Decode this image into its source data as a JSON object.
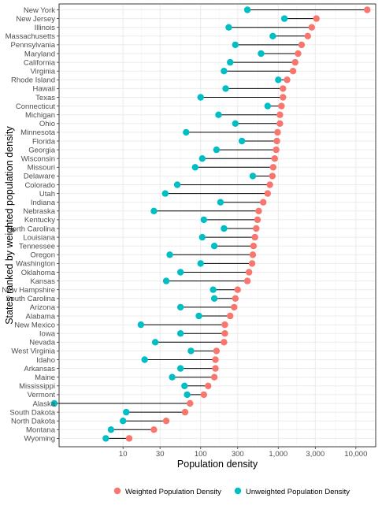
{
  "chart_data": {
    "type": "dumbbell",
    "xlabel": "Population density",
    "ylabel": "States ranked by weighted population density",
    "x_scale": "log10",
    "xlim": [
      1.5,
      18000
    ],
    "x_ticks": [
      {
        "value": 10,
        "label": "10"
      },
      {
        "value": 30,
        "label": "30"
      },
      {
        "value": 100,
        "label": "100"
      },
      {
        "value": 300,
        "label": "300"
      },
      {
        "value": 1000,
        "label": "1,000"
      },
      {
        "value": 3000,
        "label": "3,000"
      },
      {
        "value": 10000,
        "label": "10,000"
      }
    ],
    "grid": true,
    "legend_position": "bottom",
    "series": [
      {
        "name": "Weighted Population Density",
        "color": "#F8766D",
        "key": "weighted"
      },
      {
        "name": "Unweighted Population Density",
        "color": "#00BFC4",
        "key": "unweighted"
      }
    ],
    "states": [
      {
        "name": "New York",
        "weighted": 14000,
        "unweighted": 400
      },
      {
        "name": "New Jersey",
        "weighted": 3100,
        "unweighted": 1200
      },
      {
        "name": "Illinois",
        "weighted": 2700,
        "unweighted": 230
      },
      {
        "name": "Massachusetts",
        "weighted": 2400,
        "unweighted": 850
      },
      {
        "name": "Pennsylvania",
        "weighted": 2000,
        "unweighted": 280
      },
      {
        "name": "Maryland",
        "weighted": 1800,
        "unweighted": 600
      },
      {
        "name": "California",
        "weighted": 1650,
        "unweighted": 240
      },
      {
        "name": "Virginia",
        "weighted": 1550,
        "unweighted": 200
      },
      {
        "name": "Rhode Island",
        "weighted": 1300,
        "unweighted": 1000
      },
      {
        "name": "Hawaii",
        "weighted": 1150,
        "unweighted": 210
      },
      {
        "name": "Texas",
        "weighted": 1150,
        "unweighted": 100
      },
      {
        "name": "Connecticut",
        "weighted": 1100,
        "unweighted": 730
      },
      {
        "name": "Michigan",
        "weighted": 1050,
        "unweighted": 170
      },
      {
        "name": "Ohio",
        "weighted": 1050,
        "unweighted": 280
      },
      {
        "name": "Minnesota",
        "weighted": 980,
        "unweighted": 65
      },
      {
        "name": "Florida",
        "weighted": 960,
        "unweighted": 340
      },
      {
        "name": "Georgia",
        "weighted": 940,
        "unweighted": 160
      },
      {
        "name": "Wisconsin",
        "weighted": 900,
        "unweighted": 105
      },
      {
        "name": "Missouri",
        "weighted": 860,
        "unweighted": 85
      },
      {
        "name": "Delaware",
        "weighted": 840,
        "unweighted": 470
      },
      {
        "name": "Colorado",
        "weighted": 780,
        "unweighted": 50
      },
      {
        "name": "Utah",
        "weighted": 730,
        "unweighted": 35
      },
      {
        "name": "Indiana",
        "weighted": 640,
        "unweighted": 180
      },
      {
        "name": "Nebraska",
        "weighted": 560,
        "unweighted": 25
      },
      {
        "name": "Kentucky",
        "weighted": 540,
        "unweighted": 110
      },
      {
        "name": "North Carolina",
        "weighted": 520,
        "unweighted": 200
      },
      {
        "name": "Louisiana",
        "weighted": 500,
        "unweighted": 105
      },
      {
        "name": "Tennessee",
        "weighted": 480,
        "unweighted": 150
      },
      {
        "name": "Oregon",
        "weighted": 470,
        "unweighted": 40
      },
      {
        "name": "Washington",
        "weighted": 460,
        "unweighted": 100
      },
      {
        "name": "Oklahoma",
        "weighted": 420,
        "unweighted": 55
      },
      {
        "name": "Kansas",
        "weighted": 400,
        "unweighted": 36
      },
      {
        "name": "New Hampshire",
        "weighted": 300,
        "unweighted": 145
      },
      {
        "name": "South Carolina",
        "weighted": 280,
        "unweighted": 150
      },
      {
        "name": "Arizona",
        "weighted": 270,
        "unweighted": 55
      },
      {
        "name": "Alabama",
        "weighted": 240,
        "unweighted": 95
      },
      {
        "name": "New Mexico",
        "weighted": 205,
        "unweighted": 17
      },
      {
        "name": "Iowa",
        "weighted": 205,
        "unweighted": 55
      },
      {
        "name": "Nevada",
        "weighted": 200,
        "unweighted": 26
      },
      {
        "name": "West Virginia",
        "weighted": 160,
        "unweighted": 75
      },
      {
        "name": "Idaho",
        "weighted": 155,
        "unweighted": 19
      },
      {
        "name": "Arkansas",
        "weighted": 155,
        "unweighted": 55
      },
      {
        "name": "Maine",
        "weighted": 150,
        "unweighted": 43
      },
      {
        "name": "Mississippi",
        "weighted": 125,
        "unweighted": 62
      },
      {
        "name": "Vermont",
        "weighted": 110,
        "unweighted": 67
      },
      {
        "name": "Alaska",
        "weighted": 73,
        "unweighted": 1.3
      },
      {
        "name": "South Dakota",
        "weighted": 63,
        "unweighted": 11
      },
      {
        "name": "North Dakota",
        "weighted": 36,
        "unweighted": 10
      },
      {
        "name": "Montana",
        "weighted": 25,
        "unweighted": 7
      },
      {
        "name": "Wyoming",
        "weighted": 12,
        "unweighted": 6
      }
    ]
  }
}
